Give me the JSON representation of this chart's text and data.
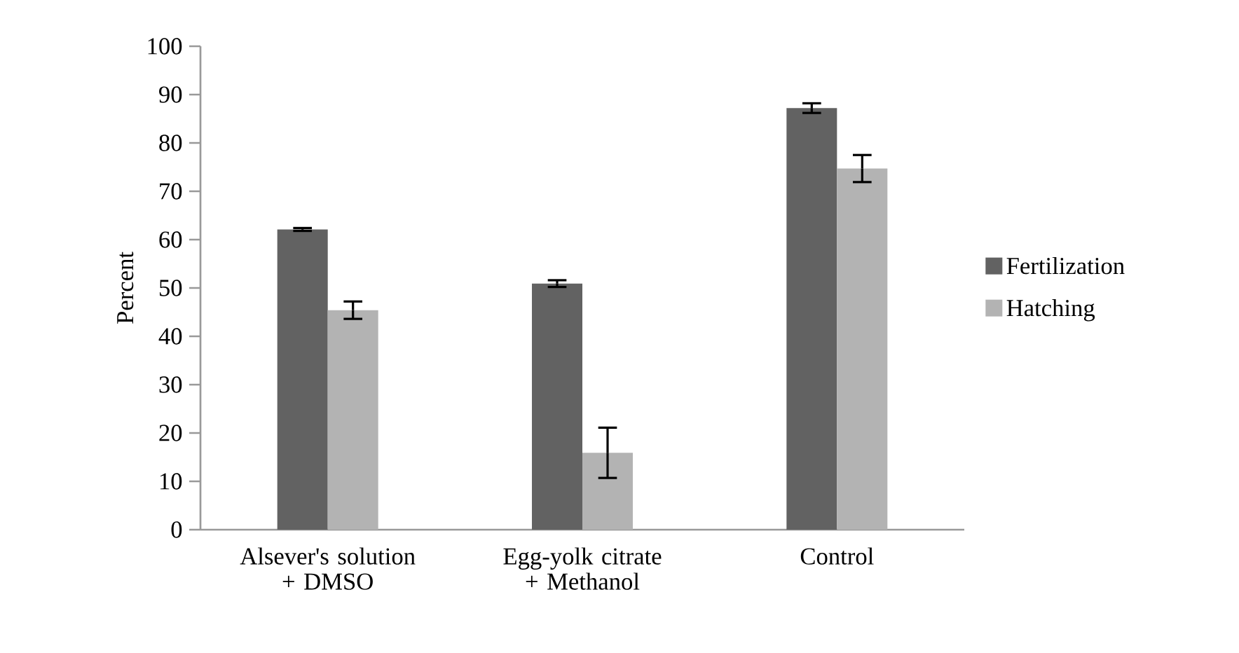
{
  "chart_data": {
    "type": "bar",
    "ylabel": "Percent",
    "categories": [
      "Alsever's solution + DMSO",
      "Egg-yolk citrate + Methanol",
      "Control"
    ],
    "series": [
      {
        "name": "Fertilization",
        "color": "#626262",
        "values": [
          62.1,
          50.9,
          87.2
        ],
        "errors": [
          0.3,
          0.7,
          1.0
        ]
      },
      {
        "name": "Hatching",
        "color": "#b3b3b3",
        "values": [
          45.4,
          15.9,
          74.7
        ],
        "errors": [
          1.8,
          5.2,
          2.8
        ]
      }
    ],
    "ylim": [
      0,
      100
    ],
    "yticks": [
      0,
      10,
      20,
      30,
      40,
      50,
      60,
      70,
      80,
      90,
      100
    ],
    "grid": false,
    "legend": "right"
  }
}
